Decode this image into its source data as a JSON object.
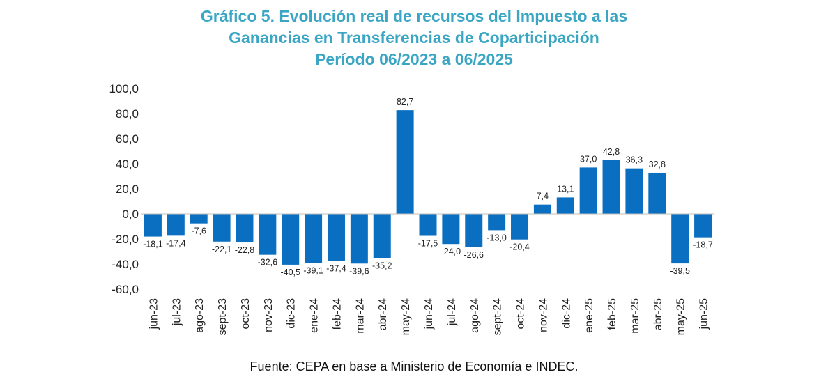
{
  "chart_data": {
    "type": "bar",
    "title": [
      "Gráfico 5. Evolución real de recursos del Impuesto a las",
      "Ganancias en Transferencias de Coparticipación",
      "Período 06/2023 a 06/2025"
    ],
    "xlabel": "",
    "ylabel": "",
    "ylim": [
      -60,
      100
    ],
    "yticks": [
      "100,0",
      "80,0",
      "60,0",
      "40,0",
      "20,0",
      "0,0",
      "-20,0",
      "-40,0",
      "-60,0"
    ],
    "ytick_values": [
      100,
      80,
      60,
      40,
      20,
      0,
      -20,
      -40,
      -60
    ],
    "grid": false,
    "legend": "none",
    "bar_color": "#0a6fc0",
    "categories": [
      "jun-23",
      "jul-23",
      "ago-23",
      "sept-23",
      "oct-23",
      "nov-23",
      "dic-23",
      "ene-24",
      "feb-24",
      "mar-24",
      "abr-24",
      "may-24",
      "jun-24",
      "jul-24",
      "ago-24",
      "sept-24",
      "oct-24",
      "nov-24",
      "dic-24",
      "ene-25",
      "feb-25",
      "mar-25",
      "abr-25",
      "may-25",
      "jun-25"
    ],
    "values": [
      -18.1,
      -17.4,
      -7.6,
      -22.1,
      -22.8,
      -32.6,
      -40.5,
      -39.1,
      -37.4,
      -39.6,
      -35.2,
      82.7,
      -17.5,
      -24.0,
      -26.6,
      -13.0,
      -20.4,
      7.4,
      13.1,
      37.0,
      42.8,
      36.3,
      32.8,
      -39.5,
      -18.7
    ],
    "data_labels": [
      "-18,1",
      "-17,4",
      "-7,6",
      "-22,1",
      "-22,8",
      "-32,6",
      "-40,5",
      "-39,1",
      "-37,4",
      "-39,6",
      "-35,2",
      "82,7",
      "-17,5",
      "-24,0",
      "-26,6",
      "-13,0",
      "-20,4",
      "7,4",
      "13,1",
      "37,0",
      "42,8",
      "36,3",
      "32,8",
      "-39,5",
      "-18,7"
    ]
  },
  "source": "Fuente: CEPA en base a Ministerio de Economía e INDEC."
}
